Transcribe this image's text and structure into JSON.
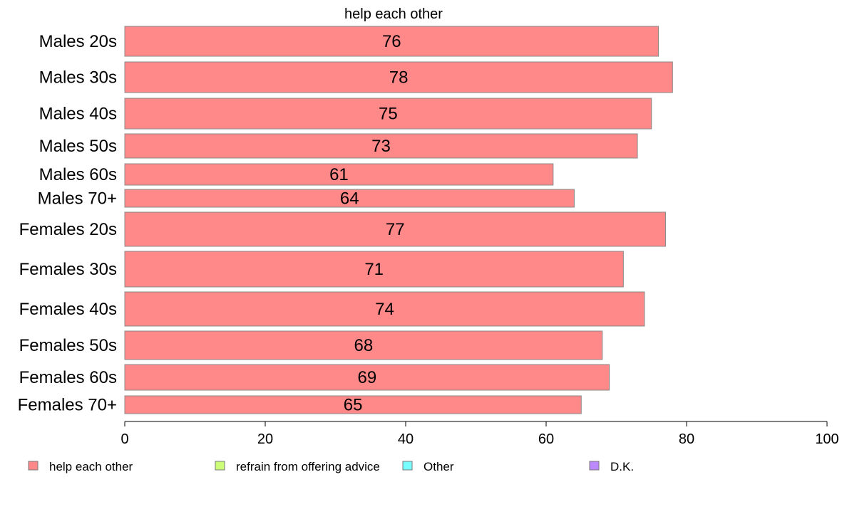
{
  "chart_data": {
    "type": "bar",
    "orientation": "horizontal",
    "title": "help each other",
    "categories": [
      "Males 20s",
      "Males 30s",
      "Males 40s",
      "Males 50s",
      "Males 60s",
      "Males 70+",
      "Females 20s",
      "Females 30s",
      "Females 40s",
      "Females 50s",
      "Females 60s",
      "Females 70+"
    ],
    "series": [
      {
        "name": "help each other",
        "values": [
          76,
          78,
          75,
          73,
          61,
          64,
          77,
          71,
          74,
          68,
          69,
          65
        ]
      }
    ],
    "xlim": [
      0,
      100
    ],
    "xticks": [
      0,
      20,
      40,
      60,
      80,
      100
    ],
    "grid": false,
    "bar_color": "#ff8888",
    "bar_edge_color": "#888888",
    "legend_position": "bottom",
    "legend": [
      {
        "label": "help each other",
        "color": "#ff8888"
      },
      {
        "label": "refrain from offering advice",
        "color": "#ccff77"
      },
      {
        "label": "Other",
        "color": "#77ffff"
      },
      {
        "label": "D.K.",
        "color": "#bb88ff"
      }
    ]
  }
}
